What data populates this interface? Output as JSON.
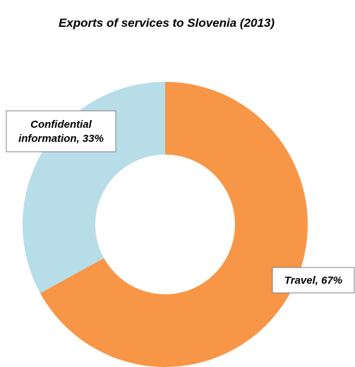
{
  "chart_data": {
    "type": "pie",
    "variant": "donut",
    "title": "Exports of services to Slovenia (2013)",
    "slices": [
      {
        "name": "Travel",
        "value": 67,
        "label_lines": [
          "Travel, 67%"
        ],
        "color": "#F79646"
      },
      {
        "name": "Confidential information",
        "value": 33,
        "label_lines": [
          "Confidential",
          "information, 33%"
        ],
        "color": "#B7DDE8"
      }
    ],
    "start_angle_deg": 0,
    "direction": "clockwise",
    "legend": "none"
  }
}
